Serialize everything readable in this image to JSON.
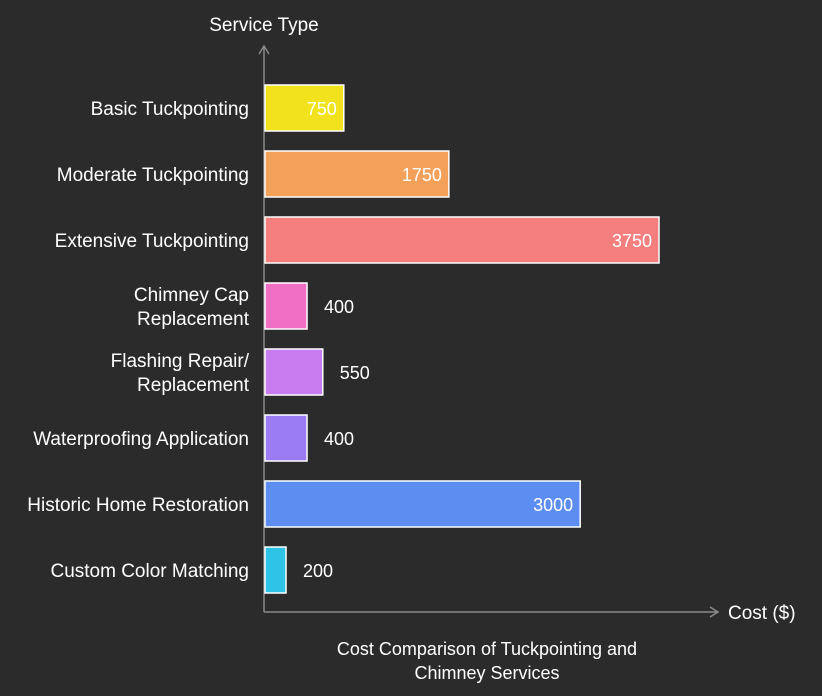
{
  "chart_data": {
    "type": "bar",
    "orientation": "horizontal",
    "title": "Cost Comparison of Tuckpointing and Chimney Services",
    "xlabel": "Cost ($)",
    "ylabel": "Service Type",
    "xlim": [
      0,
      4000
    ],
    "grid": false,
    "legend": "none",
    "categories": [
      "Basic Tuckpointing",
      "Moderate Tuckpointing",
      "Extensive Tuckpointing",
      "Chimney Cap Replacement",
      "Flashing Repair/ Replacement",
      "Waterproofing Application",
      "Historic Home Restoration",
      "Custom Color Matching"
    ],
    "values": [
      750,
      1750,
      3750,
      400,
      550,
      400,
      3000,
      200
    ],
    "colors": [
      "#f2e21e",
      "#f2a05a",
      "#f57f7f",
      "#ee6fc3",
      "#c97bf0",
      "#9b7cf4",
      "#5b8ef0",
      "#2ec4e8"
    ]
  }
}
